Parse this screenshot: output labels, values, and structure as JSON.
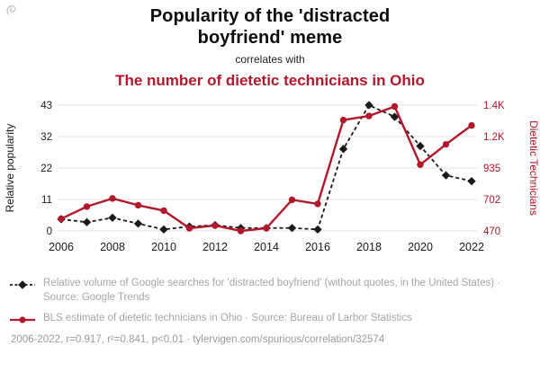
{
  "header": {
    "title_line1": "Popularity of the 'distracted",
    "title_line2": "boyfriend' meme",
    "connector": "correlates with",
    "red_title": "The number of dietetic technicians in Ohio"
  },
  "colors": {
    "accent_red": "#b2182b",
    "black_series": "#1a1a1a",
    "gridline": "#e0e0e0",
    "legend_text": "#a6a6a6"
  },
  "chart_data": {
    "type": "line",
    "x": [
      2006,
      2007,
      2008,
      2009,
      2010,
      2011,
      2012,
      2013,
      2014,
      2015,
      2016,
      2017,
      2018,
      2019,
      2020,
      2021,
      2022
    ],
    "x_tick_labels": [
      "2006",
      "2008",
      "2010",
      "2012",
      "2014",
      "2016",
      "2018",
      "2020",
      "2022"
    ],
    "x_range": [
      2006,
      2022
    ],
    "left_axis": {
      "label": "Relative popularity",
      "tick_labels": [
        "0",
        "11",
        "22",
        "32",
        "43"
      ],
      "range": [
        0,
        43
      ]
    },
    "right_axis": {
      "label": "Dietetic Technicians",
      "tick_labels": [
        "470",
        "702",
        "935",
        "1.2K",
        "1.4K"
      ],
      "range": [
        470,
        1400
      ]
    },
    "grid": "horizontal",
    "legend_position": "below",
    "series": [
      {
        "id": "google-trends",
        "name": "Relative volume of Google searches for 'distracted boyfriend'",
        "axis": "left",
        "color": "#1a1a1a",
        "marker": "diamond",
        "dash": true,
        "values": [
          4,
          3,
          4.5,
          2.5,
          0.5,
          1.5,
          2,
          1,
          1,
          1,
          0.5,
          28,
          43,
          39,
          29,
          19,
          17
        ]
      },
      {
        "id": "bls-dietetic-technicians",
        "name": "BLS estimate of dietetic technicians in Ohio",
        "axis": "right",
        "color": "#b2182b",
        "marker": "circle",
        "dash": false,
        "values": [
          560,
          650,
          710,
          660,
          620,
          490,
          510,
          470,
          490,
          700,
          670,
          1290,
          1320,
          1390,
          960,
          1110,
          1250
        ]
      }
    ]
  },
  "legend": {
    "items": [
      {
        "label": "Relative volume of Google searches for 'distracted boyfriend' (without quotes, in the United States) · Source: Google Trends"
      },
      {
        "label": "BLS estimate of dietetic technicians in Ohio · Source: Bureau of Larbor Statistics"
      }
    ]
  },
  "footer": {
    "text": "2006-2022, r=0.917, r²=0.841, p<0.01 · tylervigen.com/spurious/correlation/32574"
  }
}
